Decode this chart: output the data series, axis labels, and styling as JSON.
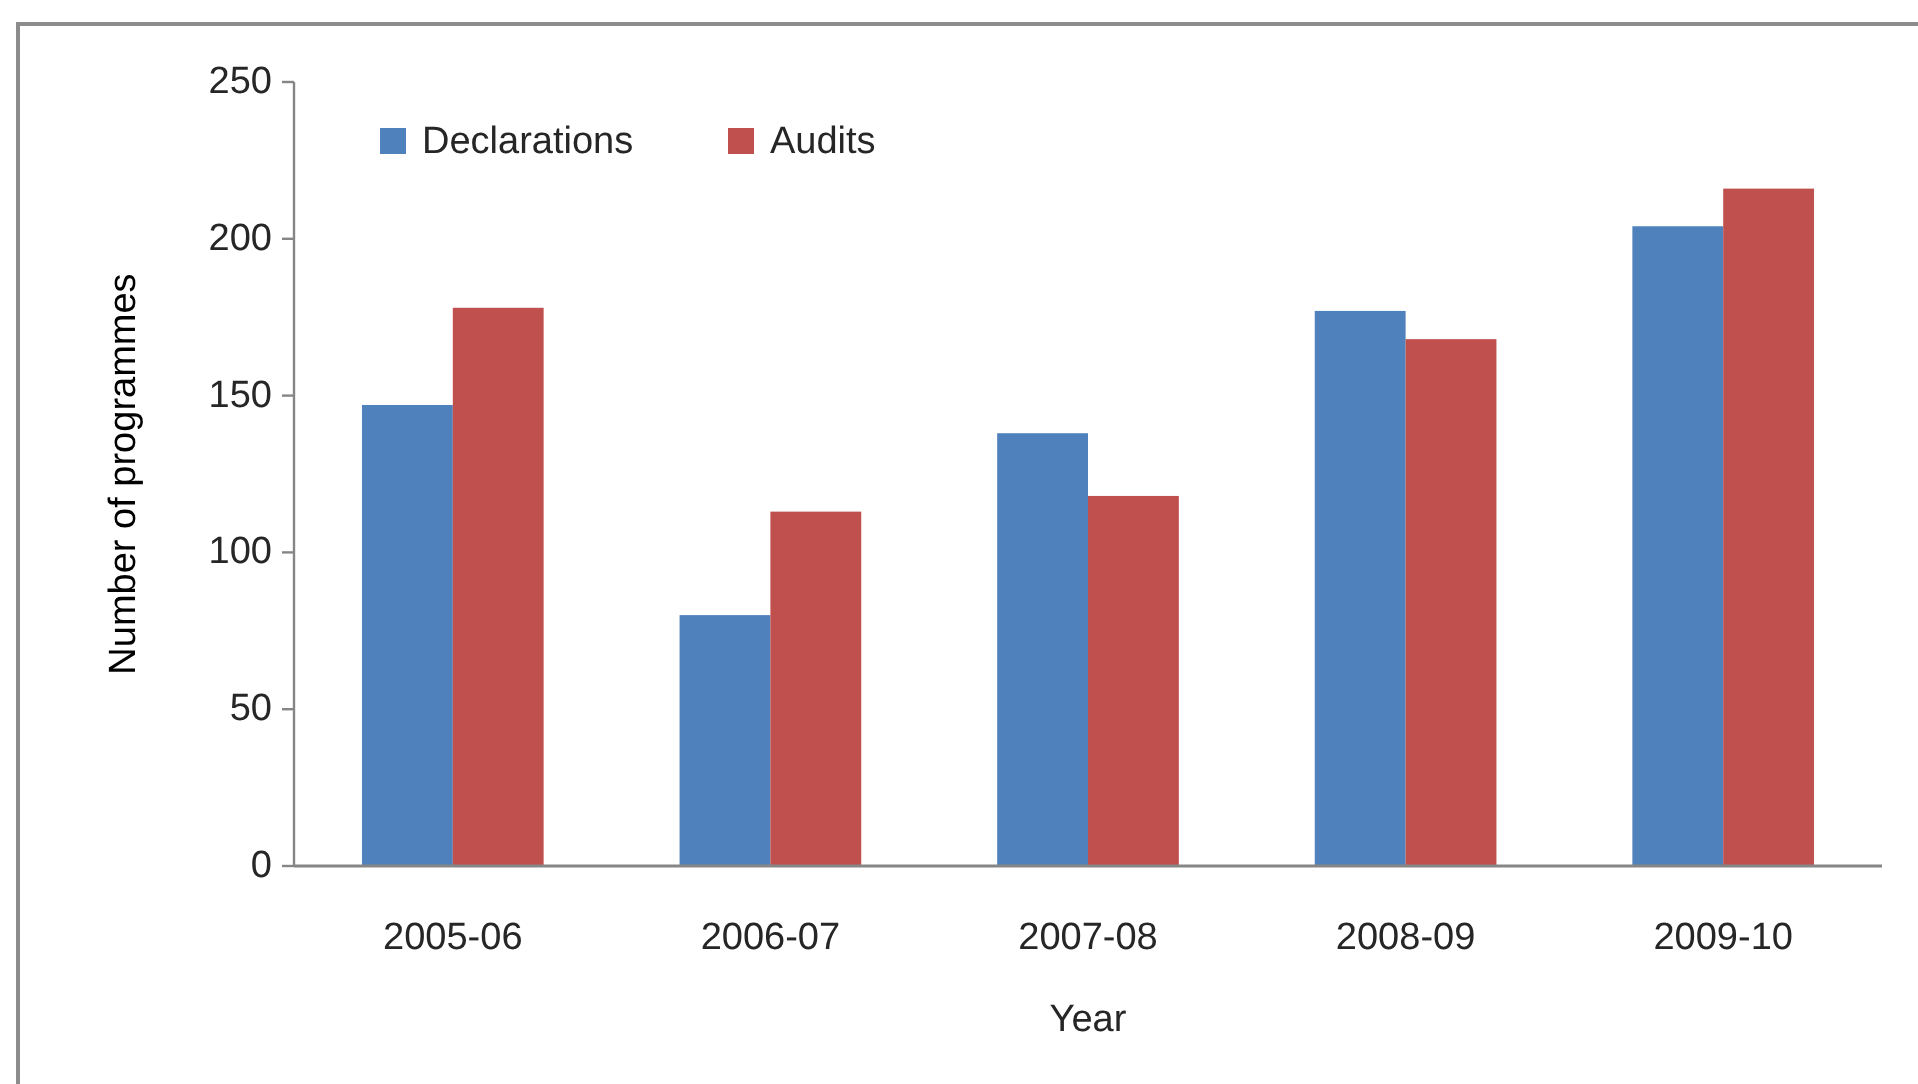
{
  "chart_data": {
    "type": "bar",
    "xlabel": "Year",
    "ylabel": "Number of programmes",
    "categories": [
      "2005-06",
      "2006-07",
      "2007-08",
      "2008-09",
      "2009-10"
    ],
    "series": [
      {
        "name": "Declarations",
        "color": "#4f81bd",
        "values": [
          147,
          80,
          138,
          177,
          204
        ]
      },
      {
        "name": "Audits",
        "color": "#c0504d",
        "values": [
          178,
          113,
          118,
          168,
          216
        ]
      }
    ],
    "ylim": [
      0,
      250
    ],
    "yticks": [
      0,
      50,
      100,
      150,
      200,
      250
    ],
    "legend": "top left"
  }
}
